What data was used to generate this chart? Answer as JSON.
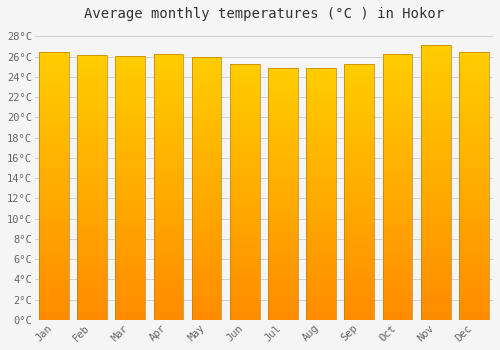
{
  "title": "Average monthly temperatures (°C ) in Hokor",
  "months": [
    "Jan",
    "Feb",
    "Mar",
    "Apr",
    "May",
    "Jun",
    "Jul",
    "Aug",
    "Sep",
    "Oct",
    "Nov",
    "Dec"
  ],
  "temperatures": [
    26.5,
    26.2,
    26.1,
    26.3,
    26.0,
    25.3,
    24.9,
    24.9,
    25.3,
    26.3,
    27.2,
    26.5
  ],
  "bar_color_bottom": "#FF8C00",
  "bar_color_top": "#FFCC00",
  "bar_edge_color": "#BF8000",
  "background_color": "#F5F5F5",
  "grid_color": "#CCCCCC",
  "text_color": "#666666",
  "title_color": "#333333",
  "ylim": [
    0,
    29
  ],
  "ytick_step": 2,
  "tick_font": "monospace",
  "title_fontsize": 10,
  "tick_fontsize": 7.5
}
